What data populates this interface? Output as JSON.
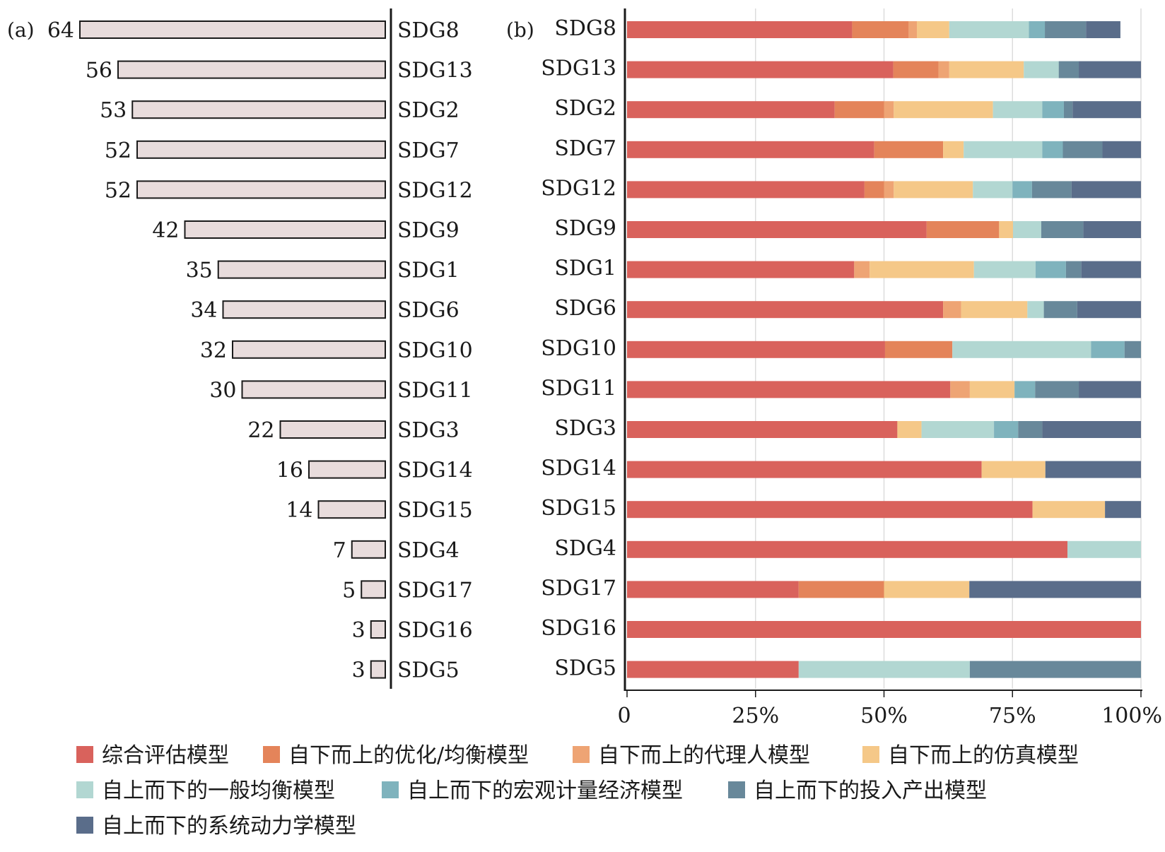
{
  "chart_data": [
    {
      "type": "bar",
      "panel_label": "(a)",
      "categories": [
        "SDG8",
        "SDG13",
        "SDG2",
        "SDG7",
        "SDG12",
        "SDG9",
        "SDG1",
        "SDG6",
        "SDG10",
        "SDG11",
        "SDG3",
        "SDG14",
        "SDG15",
        "SDG4",
        "SDG17",
        "SDG16",
        "SDG5"
      ],
      "values": [
        64,
        56,
        53,
        52,
        52,
        42,
        35,
        34,
        32,
        30,
        22,
        16,
        14,
        7,
        5,
        3,
        3
      ],
      "bar_color": "#e8dcdc",
      "orientation": "horizontal-right-aligned"
    },
    {
      "type": "bar",
      "stacked": "percent",
      "panel_label": "(b)",
      "categories": [
        "SDG8",
        "SDG13",
        "SDG2",
        "SDG7",
        "SDG12",
        "SDG9",
        "SDG1",
        "SDG6",
        "SDG10",
        "SDG11",
        "SDG3",
        "SDG14",
        "SDG15",
        "SDG4",
        "SDG17",
        "SDG16",
        "SDG5"
      ],
      "xlim": [
        0,
        100
      ],
      "xticks": [
        "0",
        "25%",
        "50%",
        "75%",
        "100%"
      ],
      "grid": true,
      "legend_position": "bottom",
      "series": [
        {
          "name": "综合评估模型",
          "color": "#d9625c",
          "values": [
            43.8,
            51.8,
            40.4,
            48.1,
            46.2,
            58.3,
            44.2,
            61.5,
            50.2,
            62.9,
            52.6,
            69.0,
            78.9,
            85.7,
            33.4,
            100,
            33.4
          ]
        },
        {
          "name": "自下而上的优化/均衡模型",
          "color": "#e4845a",
          "values": [
            11.0,
            8.8,
            9.6,
            13.4,
            3.8,
            14.1,
            0,
            0,
            13.1,
            0,
            0,
            0,
            0,
            0,
            16.6,
            0,
            0
          ]
        },
        {
          "name": "自下而上的代理人模型",
          "color": "#eea474",
          "values": [
            1.6,
            2.1,
            1.9,
            0,
            1.9,
            0,
            3.0,
            3.5,
            0,
            3.8,
            0,
            0,
            0,
            0,
            0,
            0,
            0
          ]
        },
        {
          "name": "自下而上的仿真模型",
          "color": "#f5c888",
          "values": [
            6.3,
            14.5,
            19.3,
            4.0,
            15.4,
            2.7,
            20.3,
            12.9,
            0,
            8.7,
            4.7,
            12.4,
            14.1,
            0,
            16.6,
            0,
            0
          ]
        },
        {
          "name": "自上而下的一般均衡模型",
          "color": "#b2d7d2",
          "values": [
            15.5,
            6.8,
            9.6,
            15.3,
            7.7,
            5.5,
            12.0,
            3.2,
            27.0,
            0,
            14.1,
            0,
            0,
            14.3,
            0,
            0,
            33.3
          ]
        },
        {
          "name": "自上而下的宏观计量经济模型",
          "color": "#7fb3bd",
          "values": [
            3.1,
            0,
            4.2,
            4.0,
            3.8,
            0,
            5.9,
            0,
            6.5,
            4.0,
            4.7,
            0,
            0,
            0,
            0,
            0,
            0
          ]
        },
        {
          "name": "自上而下的投入产出模型",
          "color": "#68889a",
          "values": [
            8.0,
            3.9,
            1.7,
            7.7,
            7.7,
            8.2,
            3.0,
            6.5,
            3.2,
            8.5,
            4.7,
            0,
            0,
            0,
            0,
            0,
            33.3
          ]
        },
        {
          "name": "自上而下的系统动力学模型",
          "color": "#5a6d8a",
          "values": [
            6.7,
            12.1,
            13.3,
            7.5,
            13.5,
            11.2,
            11.6,
            12.4,
            0,
            12.1,
            19.2,
            18.6,
            7.0,
            0,
            33.4,
            0,
            0
          ]
        }
      ]
    }
  ]
}
